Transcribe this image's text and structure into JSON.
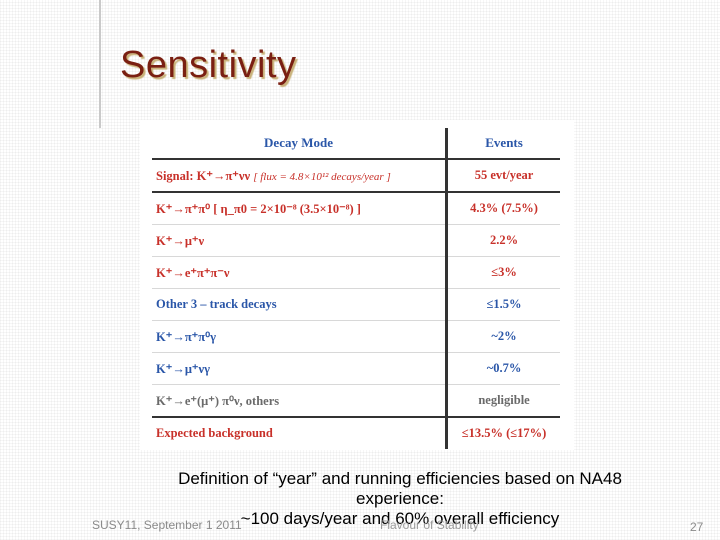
{
  "slide": {
    "title": "Sensitivity",
    "caption_line1": "Definition of “year” and running efficiencies based on NA48",
    "caption_line2": "experience:",
    "caption_line3": "~100 days/year and 60% overall efficiency",
    "footer_left": "SUSY11, September 1 2011",
    "footer_mid": "Flavour of Stability",
    "page_number": "27"
  },
  "table": {
    "header_mode": "Decay Mode",
    "header_events": "Events",
    "signal": {
      "mode": "Signal: K⁺→π⁺νν",
      "note": "[ flux = 4.8×10¹² decays/year ]",
      "events": "55 evt/year"
    },
    "rows": [
      {
        "mode": "K⁺→π⁺π⁰  [ η_π0 = 2×10⁻⁸ (3.5×10⁻⁸) ]",
        "events": "4.3% (7.5%)",
        "style": "row-red"
      },
      {
        "mode": "K⁺→μ⁺ν",
        "events": "2.2%",
        "style": "row-red"
      },
      {
        "mode": "K⁺→e⁺π⁺π⁻ν",
        "events": "≤3%",
        "style": "row-red"
      },
      {
        "mode": "Other 3 – track decays",
        "events": "≤1.5%",
        "style": "row-blue"
      },
      {
        "mode": "K⁺→π⁺π⁰γ",
        "events": "~2%",
        "style": "row-blue"
      },
      {
        "mode": "K⁺→μ⁺νγ",
        "events": "~0.7%",
        "style": "row-blue"
      },
      {
        "mode": "K⁺→e⁺(μ⁺) π⁰ν, others",
        "events": "negligible",
        "style": "row-gray"
      }
    ],
    "total": {
      "mode": "Expected background",
      "events": "≤13.5% (≤17%)"
    }
  }
}
